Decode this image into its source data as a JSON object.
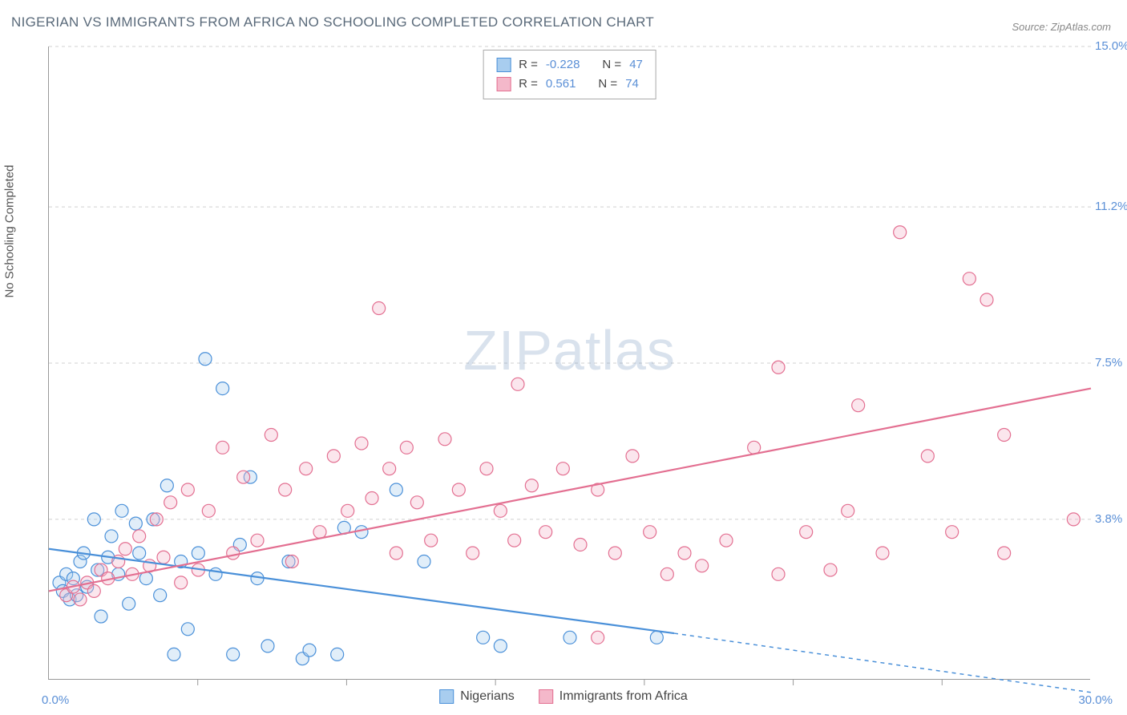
{
  "title": "NIGERIAN VS IMMIGRANTS FROM AFRICA NO SCHOOLING COMPLETED CORRELATION CHART",
  "source": "Source: ZipAtlas.com",
  "y_axis_label": "No Schooling Completed",
  "watermark_a": "ZIP",
  "watermark_b": "atlas",
  "chart": {
    "type": "scatter",
    "background_color": "#ffffff",
    "grid_color": "#d0d0d0",
    "axis_color": "#999999",
    "tick_label_color": "#5a8fd6",
    "xlim": [
      0,
      30
    ],
    "ylim": [
      0,
      15
    ],
    "x_ticks": [
      0,
      30
    ],
    "x_tick_labels": [
      "0.0%",
      "30.0%"
    ],
    "x_minor_ticks_count": 6,
    "y_gridlines": [
      3.8,
      7.5,
      11.2,
      15.0
    ],
    "y_tick_labels": [
      "3.8%",
      "7.5%",
      "11.2%",
      "15.0%"
    ],
    "point_radius": 8,
    "point_stroke_width": 1.2,
    "point_fill_opacity": 0.35,
    "line_width": 2.2,
    "series": [
      {
        "name": "Nigerians",
        "color_stroke": "#4a90d9",
        "color_fill": "#a8cdef",
        "R": "-0.228",
        "N": "47",
        "trend": {
          "x1": 0,
          "y1": 3.1,
          "x2": 18,
          "y2": 1.1,
          "x2_dash": 30,
          "y2_dash": -0.3
        },
        "points": [
          [
            0.3,
            2.3
          ],
          [
            0.4,
            2.1
          ],
          [
            0.5,
            2.5
          ],
          [
            0.6,
            1.9
          ],
          [
            0.7,
            2.4
          ],
          [
            0.8,
            2.0
          ],
          [
            0.9,
            2.8
          ],
          [
            1.0,
            3.0
          ],
          [
            1.1,
            2.2
          ],
          [
            1.3,
            3.8
          ],
          [
            1.4,
            2.6
          ],
          [
            1.5,
            1.5
          ],
          [
            1.7,
            2.9
          ],
          [
            1.8,
            3.4
          ],
          [
            2.0,
            2.5
          ],
          [
            2.1,
            4.0
          ],
          [
            2.3,
            1.8
          ],
          [
            2.5,
            3.7
          ],
          [
            2.6,
            3.0
          ],
          [
            2.8,
            2.4
          ],
          [
            3.0,
            3.8
          ],
          [
            3.2,
            2.0
          ],
          [
            3.4,
            4.6
          ],
          [
            3.6,
            0.6
          ],
          [
            3.8,
            2.8
          ],
          [
            4.0,
            1.2
          ],
          [
            4.3,
            3.0
          ],
          [
            4.5,
            7.6
          ],
          [
            4.8,
            2.5
          ],
          [
            5.0,
            6.9
          ],
          [
            5.3,
            0.6
          ],
          [
            5.5,
            3.2
          ],
          [
            5.8,
            4.8
          ],
          [
            6.0,
            2.4
          ],
          [
            6.3,
            0.8
          ],
          [
            6.9,
            2.8
          ],
          [
            7.3,
            0.5
          ],
          [
            7.5,
            0.7
          ],
          [
            8.3,
            0.6
          ],
          [
            8.5,
            3.6
          ],
          [
            9.0,
            3.5
          ],
          [
            10.0,
            4.5
          ],
          [
            10.8,
            2.8
          ],
          [
            12.5,
            1.0
          ],
          [
            13.0,
            0.8
          ],
          [
            15.0,
            1.0
          ],
          [
            17.5,
            1.0
          ]
        ]
      },
      {
        "name": "Immigrants from Africa",
        "color_stroke": "#e36f91",
        "color_fill": "#f4b8ca",
        "R": "0.561",
        "N": "74",
        "trend": {
          "x1": 0,
          "y1": 2.1,
          "x2": 30,
          "y2": 6.9
        },
        "points": [
          [
            0.5,
            2.0
          ],
          [
            0.7,
            2.2
          ],
          [
            0.9,
            1.9
          ],
          [
            1.1,
            2.3
          ],
          [
            1.3,
            2.1
          ],
          [
            1.5,
            2.6
          ],
          [
            1.7,
            2.4
          ],
          [
            2.0,
            2.8
          ],
          [
            2.2,
            3.1
          ],
          [
            2.4,
            2.5
          ],
          [
            2.6,
            3.4
          ],
          [
            2.9,
            2.7
          ],
          [
            3.1,
            3.8
          ],
          [
            3.3,
            2.9
          ],
          [
            3.5,
            4.2
          ],
          [
            3.8,
            2.3
          ],
          [
            4.0,
            4.5
          ],
          [
            4.3,
            2.6
          ],
          [
            4.6,
            4.0
          ],
          [
            5.0,
            5.5
          ],
          [
            5.3,
            3.0
          ],
          [
            5.6,
            4.8
          ],
          [
            6.0,
            3.3
          ],
          [
            6.4,
            5.8
          ],
          [
            6.8,
            4.5
          ],
          [
            7.0,
            2.8
          ],
          [
            7.4,
            5.0
          ],
          [
            7.8,
            3.5
          ],
          [
            8.2,
            5.3
          ],
          [
            8.6,
            4.0
          ],
          [
            9.0,
            5.6
          ],
          [
            9.3,
            4.3
          ],
          [
            9.5,
            8.8
          ],
          [
            9.8,
            5.0
          ],
          [
            10.0,
            3.0
          ],
          [
            10.3,
            5.5
          ],
          [
            10.6,
            4.2
          ],
          [
            11.0,
            3.3
          ],
          [
            11.4,
            5.7
          ],
          [
            11.8,
            4.5
          ],
          [
            12.2,
            3.0
          ],
          [
            12.6,
            5.0
          ],
          [
            13.0,
            4.0
          ],
          [
            13.4,
            3.3
          ],
          [
            13.5,
            7.0
          ],
          [
            13.9,
            4.6
          ],
          [
            14.3,
            3.5
          ],
          [
            14.8,
            5.0
          ],
          [
            15.3,
            3.2
          ],
          [
            15.8,
            4.5
          ],
          [
            15.8,
            1.0
          ],
          [
            16.3,
            3.0
          ],
          [
            16.8,
            5.3
          ],
          [
            17.3,
            3.5
          ],
          [
            17.8,
            2.5
          ],
          [
            18.3,
            3.0
          ],
          [
            18.8,
            2.7
          ],
          [
            19.5,
            3.3
          ],
          [
            20.3,
            5.5
          ],
          [
            21.0,
            7.4
          ],
          [
            21.0,
            2.5
          ],
          [
            21.8,
            3.5
          ],
          [
            22.5,
            2.6
          ],
          [
            23.3,
            6.5
          ],
          [
            24.0,
            3.0
          ],
          [
            24.5,
            10.6
          ],
          [
            25.3,
            5.3
          ],
          [
            26.0,
            3.5
          ],
          [
            26.5,
            9.5
          ],
          [
            27.0,
            9.0
          ],
          [
            27.5,
            3.0
          ],
          [
            27.5,
            5.8
          ],
          [
            29.5,
            3.8
          ],
          [
            23.0,
            4.0
          ]
        ]
      }
    ],
    "legend_top": {
      "R_label": "R =",
      "N_label": "N ="
    },
    "legend_bottom_labels": [
      "Nigerians",
      "Immigrants from Africa"
    ]
  },
  "fonts": {
    "title_fontsize": 17,
    "source_fontsize": 13,
    "axis_label_fontsize": 15,
    "tick_fontsize": 15,
    "legend_fontsize": 15,
    "watermark_fontsize": 70
  }
}
